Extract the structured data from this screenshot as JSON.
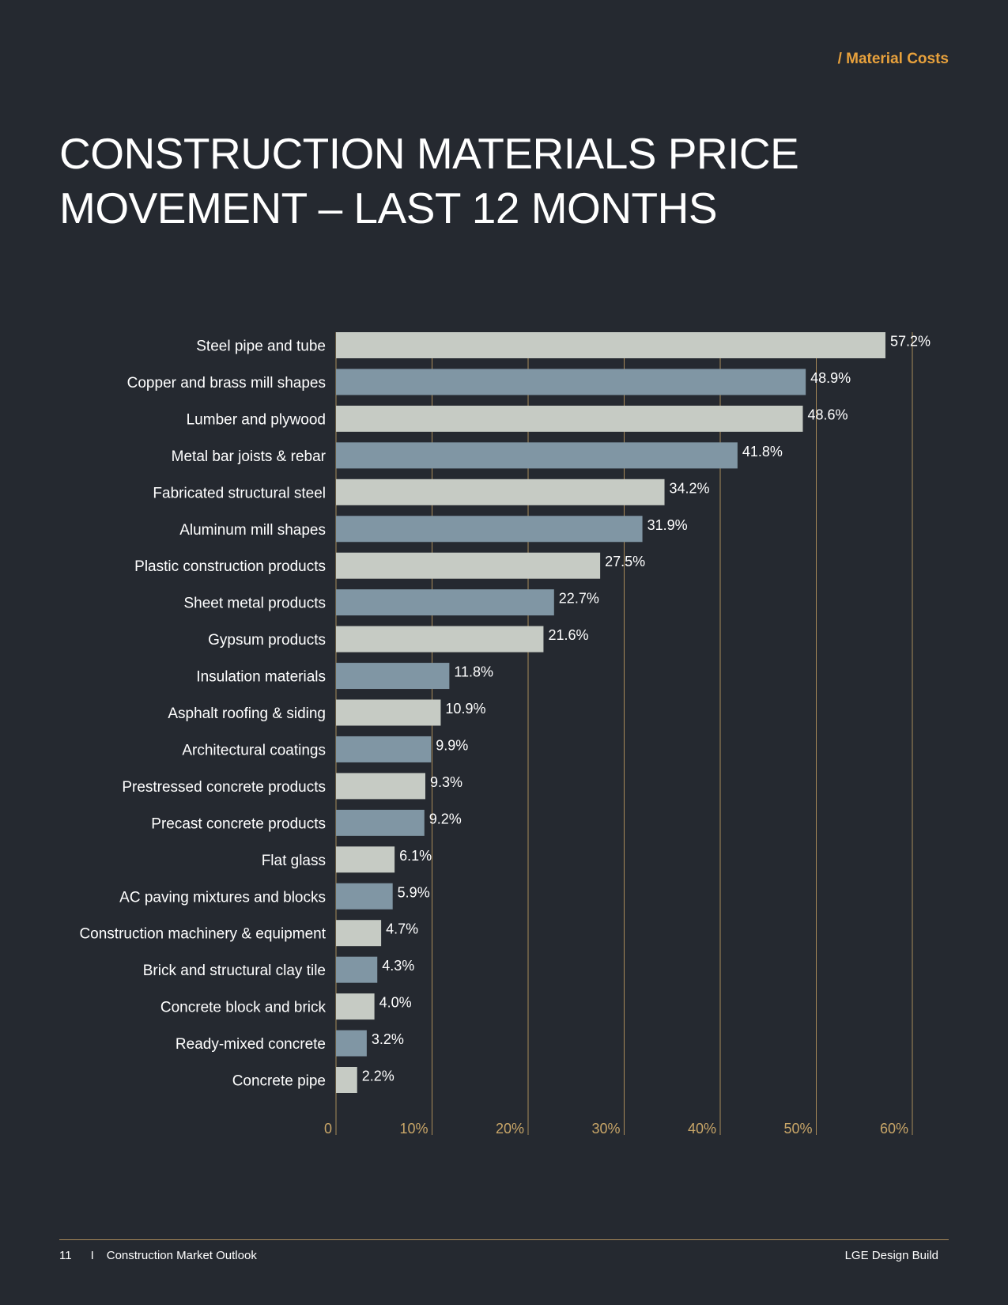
{
  "header": {
    "section_tag": "/ Material Costs",
    "title_line1": "CONSTRUCTION MATERIALS PRICE",
    "title_line2": "MOVEMENT – LAST 12 MONTHS"
  },
  "colors": {
    "background": "#252930",
    "accent": "#e8a13c",
    "bar_light": "#c6cbc4",
    "bar_dark": "#8096a4",
    "gridline": "#a88a5a",
    "tick_text": "#c9a668"
  },
  "chart_data": {
    "type": "bar",
    "orientation": "horizontal",
    "title": "CONSTRUCTION MATERIALS PRICE MOVEMENT – LAST 12 MONTHS",
    "xlabel": "",
    "ylabel": "",
    "xlim": [
      0,
      60
    ],
    "grid": true,
    "x_ticks": [
      0,
      10,
      20,
      30,
      40,
      50,
      60
    ],
    "x_tick_labels": [
      "0",
      "10%",
      "20%",
      "30%",
      "40%",
      "50%",
      "60%"
    ],
    "categories": [
      "Steel pipe and tube",
      "Copper and brass mill shapes",
      "Lumber and plywood",
      "Metal bar joists & rebar",
      "Fabricated structural steel",
      "Aluminum mill shapes",
      "Plastic construction products",
      "Sheet metal products",
      "Gypsum products",
      "Insulation materials",
      "Asphalt roofing & siding",
      "Architectural coatings",
      "Prestressed concrete products",
      "Precast concrete products",
      "Flat glass",
      "AC paving mixtures and blocks",
      "Construction machinery & equipment",
      "Brick and structural clay tile",
      "Concrete block and brick",
      "Ready-mixed concrete",
      "Concrete pipe"
    ],
    "values": [
      57.2,
      48.9,
      48.6,
      41.8,
      34.2,
      31.9,
      27.5,
      22.7,
      21.6,
      11.8,
      10.9,
      9.9,
      9.3,
      9.2,
      6.1,
      5.9,
      4.7,
      4.3,
      4.0,
      3.2,
      2.2
    ],
    "value_labels": [
      "57.2%",
      "48.9%",
      "48.6%",
      "41.8%",
      "34.2%",
      "31.9%",
      "27.5%",
      "22.7%",
      "21.6%",
      "11.8%",
      "10.9%",
      "9.9%",
      "9.3%",
      "9.2%",
      "6.1%",
      "5.9%",
      "4.7%",
      "4.3%",
      "4.0%",
      "3.2%",
      "2.2%"
    ]
  },
  "footer": {
    "page_number": "11",
    "separator": "I",
    "publication": "Construction Market Outlook",
    "company": "LGE Design Build"
  }
}
